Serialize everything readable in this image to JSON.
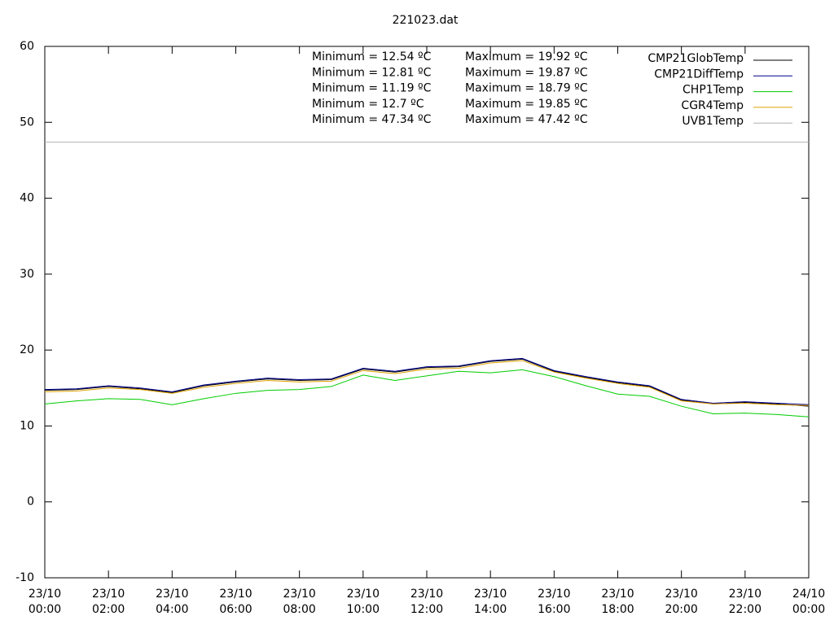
{
  "chart_data": {
    "type": "line",
    "title": "221023.dat",
    "x": [
      0,
      1,
      2,
      3,
      4,
      5,
      6,
      7,
      8,
      9,
      10,
      11,
      12,
      13,
      14,
      15,
      16,
      17,
      18,
      19,
      20,
      21,
      22,
      23,
      24
    ],
    "xlim": [
      0,
      24
    ],
    "xticks": [
      {
        "value": 0,
        "label": "23/10 00:00"
      },
      {
        "value": 2,
        "label": "23/10 02:00"
      },
      {
        "value": 4,
        "label": "23/10 04:00"
      },
      {
        "value": 6,
        "label": "23/10 06:00"
      },
      {
        "value": 8,
        "label": "23/10 08:00"
      },
      {
        "value": 10,
        "label": "23/10 10:00"
      },
      {
        "value": 12,
        "label": "23/10 12:00"
      },
      {
        "value": 14,
        "label": "23/10 14:00"
      },
      {
        "value": 16,
        "label": "23/10 16:00"
      },
      {
        "value": 18,
        "label": "23/10 18:00"
      },
      {
        "value": 20,
        "label": "23/10 20:00"
      },
      {
        "value": 22,
        "label": "23/10 22:00"
      },
      {
        "value": 24,
        "label": "24/10 00:00"
      }
    ],
    "ylim": [
      -10,
      60
    ],
    "yticks": [
      -10,
      0,
      10,
      20,
      30,
      40,
      50,
      60
    ],
    "annotations": [
      "Minimum = 12.54 ºC",
      "Minimum = 12.81 ºC",
      "Minimum = 11.19 ºC",
      "Minimum = 12.7 ºC",
      "Minimum = 47.34 ºC"
    ],
    "annotations_max": [
      "Maximum = 19.92 ºC",
      "Maximum = 19.87 ºC",
      "Maximum = 18.79 ºC",
      "Maximum = 19.85 ºC",
      "Maximum = 47.42 ºC"
    ],
    "series": [
      {
        "name": "CMP21GlobTemp",
        "color": "#000000",
        "values": [
          14.7,
          14.8,
          15.2,
          14.9,
          14.4,
          15.3,
          15.8,
          16.2,
          16.0,
          16.1,
          17.5,
          17.1,
          17.7,
          17.8,
          18.5,
          18.8,
          17.2,
          16.4,
          15.7,
          15.2,
          13.4,
          12.9,
          13.1,
          12.9,
          12.6
        ]
      },
      {
        "name": "CMP21DiffTemp",
        "color": "#00008b",
        "values": [
          14.8,
          14.9,
          15.3,
          15.0,
          14.5,
          15.4,
          15.9,
          16.3,
          16.1,
          16.2,
          17.6,
          17.2,
          17.8,
          17.9,
          18.6,
          18.9,
          17.3,
          16.5,
          15.8,
          15.3,
          13.5,
          13.0,
          13.2,
          13.0,
          12.8
        ]
      },
      {
        "name": "CHP1Temp",
        "color": "#00cc00",
        "values": [
          12.9,
          13.3,
          13.6,
          13.5,
          12.8,
          13.6,
          14.3,
          14.7,
          14.8,
          15.2,
          16.7,
          16.0,
          16.6,
          17.2,
          17.0,
          17.4,
          16.5,
          15.3,
          14.2,
          13.9,
          12.6,
          11.6,
          11.7,
          11.5,
          11.2
        ]
      },
      {
        "name": "CGR4Temp",
        "color": "#e0a000",
        "values": [
          14.5,
          14.6,
          15.0,
          14.8,
          14.3,
          15.1,
          15.6,
          16.0,
          15.8,
          15.9,
          17.3,
          16.9,
          17.5,
          17.6,
          18.3,
          18.6,
          17.1,
          16.3,
          15.6,
          15.1,
          13.3,
          12.9,
          13.0,
          12.8,
          12.7
        ]
      },
      {
        "name": "UVB1Temp",
        "color": "#b0b0b0",
        "values": [
          47.38,
          47.38,
          47.38,
          47.38,
          47.38,
          47.38,
          47.38,
          47.38,
          47.38,
          47.38,
          47.38,
          47.38,
          47.38,
          47.38,
          47.38,
          47.38,
          47.38,
          47.38,
          47.38,
          47.38,
          47.38,
          47.38,
          47.38,
          47.38,
          47.38
        ]
      }
    ]
  }
}
